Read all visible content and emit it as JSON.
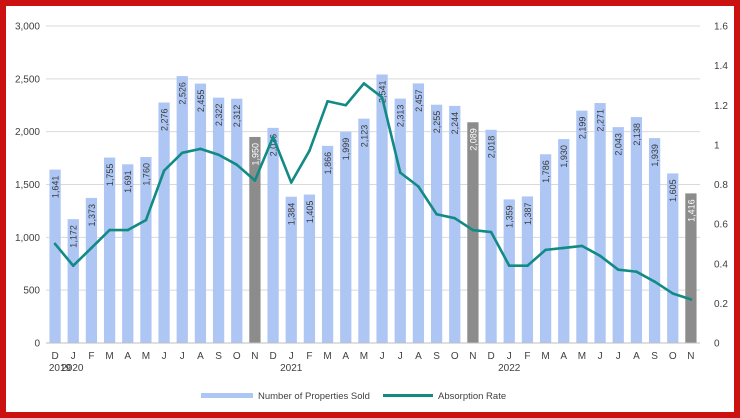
{
  "chart_data": {
    "type": "bar",
    "title": "",
    "xlabel": "",
    "ylabel": "",
    "categories": [
      "D",
      "J",
      "F",
      "M",
      "A",
      "M",
      "J",
      "J",
      "A",
      "S",
      "O",
      "N",
      "D",
      "J",
      "F",
      "M",
      "A",
      "M",
      "J",
      "J",
      "A",
      "S",
      "O",
      "N",
      "D",
      "J",
      "F",
      "M",
      "A",
      "M",
      "J",
      "J",
      "A",
      "S",
      "O",
      "N"
    ],
    "year_labels": [
      {
        "label": "2019",
        "index": 0
      },
      {
        "label": "2020",
        "index": 1
      },
      {
        "label": "2021",
        "index": 13
      },
      {
        "label": "2022",
        "index": 25
      }
    ],
    "series": [
      {
        "name": "Number of Properties Sold",
        "type": "bar",
        "axis": "left",
        "values": [
          1641,
          1172,
          1373,
          1755,
          1691,
          1760,
          2276,
          2526,
          2455,
          2322,
          2312,
          1950,
          2036,
          1384,
          1405,
          1866,
          1999,
          2123,
          2541,
          2313,
          2457,
          2255,
          2244,
          2089,
          2018,
          1359,
          1387,
          1786,
          1930,
          2199,
          2271,
          2043,
          2138,
          1939,
          1605,
          1416
        ],
        "value_labels": [
          "1,641",
          "1,172",
          "1,373",
          "1,755",
          "1,691",
          "1,760",
          "2,276",
          "2,526",
          "2,455",
          "2,322",
          "2,312",
          "1,950",
          "2,036",
          "1,384",
          "1,405",
          "1,866",
          "1,999",
          "2,123",
          "2,541",
          "2,313",
          "2,457",
          "2,255",
          "2,244",
          "2,089",
          "2,018",
          "1,359",
          "1,387",
          "1,786",
          "1,930",
          "2,199",
          "2,271",
          "2,043",
          "2,138",
          "1,939",
          "1,605",
          "1,416"
        ],
        "highlight_indices": [
          11,
          23,
          35
        ]
      },
      {
        "name": "Absorption Rate",
        "type": "line",
        "axis": "right",
        "values": [
          0.5,
          0.39,
          0.48,
          0.57,
          0.57,
          0.62,
          0.87,
          0.96,
          0.98,
          0.95,
          0.9,
          0.82,
          1.04,
          0.81,
          0.97,
          1.22,
          1.2,
          1.31,
          1.24,
          0.86,
          0.79,
          0.65,
          0.63,
          0.57,
          0.56,
          0.39,
          0.39,
          0.47,
          0.48,
          0.49,
          0.44,
          0.37,
          0.36,
          0.31,
          0.25,
          0.22
        ]
      }
    ],
    "y_left": {
      "min": 0,
      "max": 3000,
      "ticks": [
        "0",
        "500",
        "1,000",
        "1,500",
        "2,000",
        "2,500",
        "3,000"
      ],
      "tick_values": [
        0,
        500,
        1000,
        1500,
        2000,
        2500,
        3000
      ]
    },
    "y_right": {
      "min": 0,
      "max": 1.6,
      "ticks": [
        "0",
        "0.2",
        "0.4",
        "0.6",
        "0.8",
        "1",
        "1.2",
        "1.4",
        "1.6"
      ],
      "tick_values": [
        0,
        0.2,
        0.4,
        0.6,
        0.8,
        1.0,
        1.2,
        1.4,
        1.6
      ]
    },
    "grid": true,
    "legend_position": "bottom"
  },
  "colors": {
    "bar": "#aec6f4",
    "bar_highlight": "#8c8c8c",
    "line": "#128a86",
    "grid": "#d9d9d9",
    "frame": "#cc1111",
    "text": "#404040"
  }
}
